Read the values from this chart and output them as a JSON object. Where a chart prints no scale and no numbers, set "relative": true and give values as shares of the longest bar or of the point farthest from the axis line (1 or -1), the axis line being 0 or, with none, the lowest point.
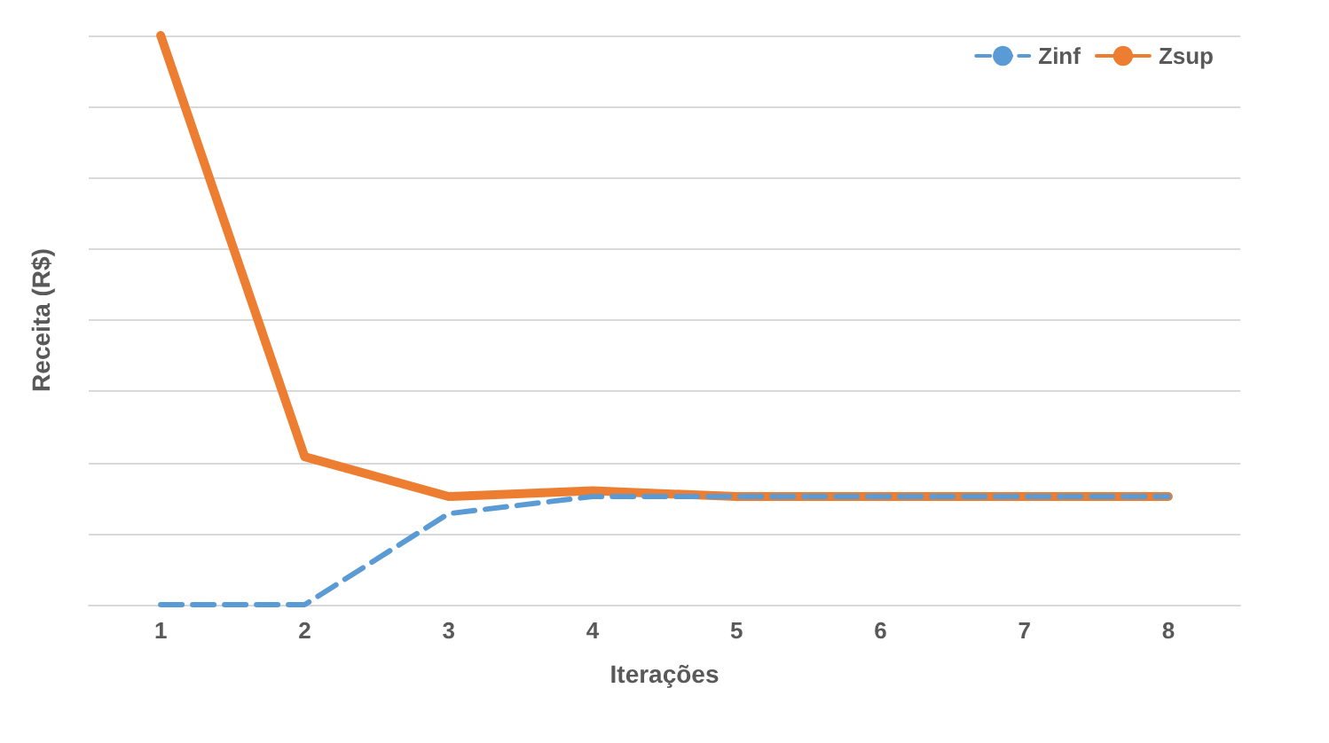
{
  "chart_data": {
    "type": "line",
    "xlabel": "Iterações",
    "ylabel": "Receita (R$)",
    "categories": [
      "1",
      "2",
      "3",
      "4",
      "5",
      "6",
      "7",
      "8"
    ],
    "relative": true,
    "grid": "y",
    "legend": "top right",
    "marker": "none",
    "series": [
      {
        "name": "Zinf",
        "color": "#5b9bd5",
        "line_style": "dashed",
        "values": [
          0,
          0,
          0.16,
          0.19,
          0.19,
          0.19,
          0.19,
          0.19
        ]
      },
      {
        "name": "Zsup",
        "color": "#ed7d31",
        "line_style": "solid",
        "values": [
          1,
          0.26,
          0.19,
          0.2,
          0.19,
          0.19,
          0.19,
          0.19
        ]
      }
    ]
  }
}
